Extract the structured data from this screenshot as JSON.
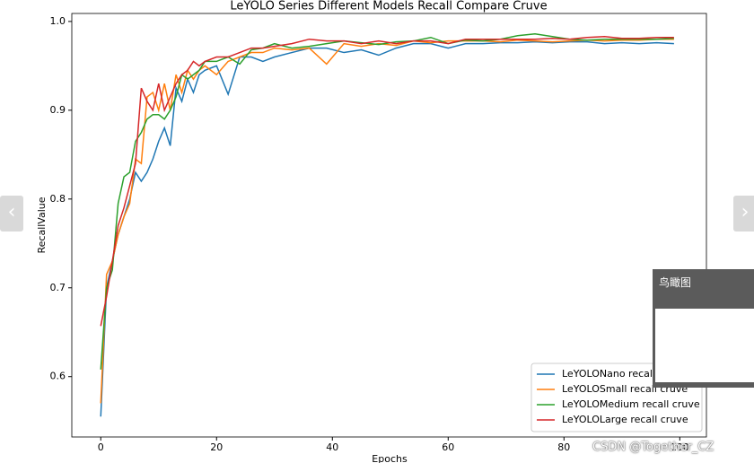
{
  "chart_data": {
    "type": "line",
    "title": "LeYOLO Series Different Models Recall Compare Cruve",
    "x_label": "Epochs",
    "y_label": "RecallValue",
    "x": [
      0,
      1,
      2,
      3,
      4,
      5,
      6,
      7,
      8,
      9,
      10,
      11,
      12,
      13,
      14,
      15,
      16,
      17,
      18,
      20,
      22,
      24,
      26,
      28,
      30,
      33,
      36,
      39,
      42,
      45,
      48,
      51,
      54,
      57,
      60,
      63,
      66,
      69,
      72,
      75,
      78,
      81,
      84,
      87,
      90,
      93,
      96,
      99
    ],
    "series": [
      {
        "name": "LeYOLONano recall cruve",
        "color": "#1f77b4",
        "values": [
          0.555,
          0.7,
          0.73,
          0.76,
          0.78,
          0.8,
          0.83,
          0.82,
          0.83,
          0.845,
          0.865,
          0.88,
          0.86,
          0.925,
          0.91,
          0.935,
          0.92,
          0.94,
          0.945,
          0.95,
          0.918,
          0.96,
          0.96,
          0.955,
          0.96,
          0.965,
          0.97,
          0.97,
          0.965,
          0.968,
          0.962,
          0.97,
          0.975,
          0.975,
          0.97,
          0.975,
          0.975,
          0.976,
          0.976,
          0.977,
          0.976,
          0.977,
          0.977,
          0.975,
          0.976,
          0.975,
          0.976,
          0.975
        ]
      },
      {
        "name": "LeYOLOSmall recall cruve",
        "color": "#ff7f0e",
        "values": [
          0.57,
          0.715,
          0.73,
          0.76,
          0.78,
          0.795,
          0.845,
          0.84,
          0.915,
          0.92,
          0.9,
          0.93,
          0.9,
          0.94,
          0.92,
          0.945,
          0.935,
          0.945,
          0.95,
          0.94,
          0.955,
          0.96,
          0.965,
          0.965,
          0.97,
          0.968,
          0.97,
          0.952,
          0.975,
          0.972,
          0.975,
          0.973,
          0.978,
          0.976,
          0.978,
          0.978,
          0.978,
          0.977,
          0.979,
          0.978,
          0.977,
          0.978,
          0.979,
          0.978,
          0.979,
          0.979,
          0.98,
          0.98
        ]
      },
      {
        "name": "LeYOLOMedium recall cruve",
        "color": "#2ca02c",
        "values": [
          0.608,
          0.7,
          0.72,
          0.795,
          0.825,
          0.83,
          0.865,
          0.875,
          0.89,
          0.895,
          0.895,
          0.89,
          0.9,
          0.915,
          0.94,
          0.935,
          0.94,
          0.945,
          0.955,
          0.955,
          0.96,
          0.952,
          0.968,
          0.97,
          0.975,
          0.97,
          0.972,
          0.975,
          0.978,
          0.976,
          0.974,
          0.977,
          0.978,
          0.982,
          0.975,
          0.979,
          0.978,
          0.98,
          0.984,
          0.986,
          0.983,
          0.98,
          0.979,
          0.98,
          0.98,
          0.98,
          0.98,
          0.981
        ]
      },
      {
        "name": "LeYOLOLarge recall cruve",
        "color": "#d62728",
        "values": [
          0.657,
          0.69,
          0.73,
          0.77,
          0.79,
          0.815,
          0.84,
          0.925,
          0.91,
          0.9,
          0.93,
          0.9,
          0.915,
          0.93,
          0.94,
          0.945,
          0.955,
          0.95,
          0.955,
          0.96,
          0.96,
          0.965,
          0.97,
          0.97,
          0.972,
          0.975,
          0.98,
          0.978,
          0.978,
          0.975,
          0.978,
          0.975,
          0.978,
          0.978,
          0.975,
          0.98,
          0.98,
          0.98,
          0.98,
          0.98,
          0.981,
          0.98,
          0.982,
          0.983,
          0.981,
          0.981,
          0.982,
          0.982
        ]
      }
    ],
    "xlim": [
      -5,
      104.6
    ],
    "ylim": [
      0.532,
      1.009
    ],
    "xticks": [
      0,
      20,
      40,
      60,
      80,
      100
    ],
    "yticks": [
      0.6,
      0.7,
      0.8,
      0.9,
      {
        "value": 1,
        "label": "1.0"
      }
    ],
    "grid": false,
    "legend": "lower right"
  },
  "viewer": {
    "overview_title": "鸟瞰图",
    "watermark": "CSDN @Together_CZ"
  }
}
